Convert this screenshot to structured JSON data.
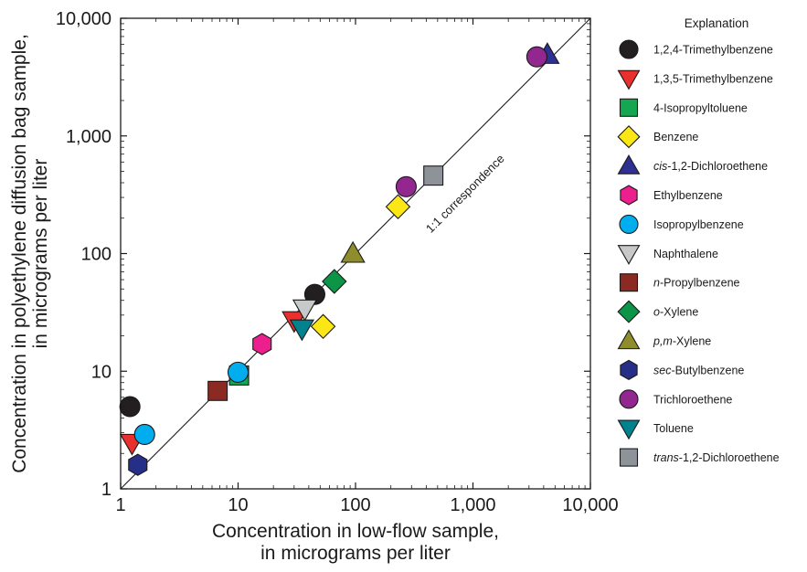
{
  "chart_data": {
    "type": "scatter",
    "title": "",
    "xlabel_lines": [
      "Concentration in low-flow sample,",
      "in micrograms per liter"
    ],
    "ylabel_lines": [
      "Concentration in polyethylene diffusion bag sample,",
      "in micrograms per liter"
    ],
    "scale": "log",
    "xlim": [
      1,
      10000
    ],
    "ylim": [
      1,
      10000
    ],
    "x_ticks": [
      {
        "v": 1,
        "label": "1"
      },
      {
        "v": 10,
        "label": "10"
      },
      {
        "v": 100,
        "label": "100"
      },
      {
        "v": 1000,
        "label": "1,000"
      },
      {
        "v": 10000,
        "label": "10,000"
      }
    ],
    "y_ticks": [
      {
        "v": 1,
        "label": "1"
      },
      {
        "v": 10,
        "label": "10"
      },
      {
        "v": 100,
        "label": "100"
      },
      {
        "v": 1000,
        "label": "1,000"
      },
      {
        "v": 10000,
        "label": "10,000"
      }
    ],
    "grid": false,
    "reference_line": {
      "label": "1:1 correspondence",
      "from": [
        1,
        1
      ],
      "to": [
        10000,
        10000
      ]
    },
    "legend": {
      "title": "Explanation",
      "placement": "right"
    },
    "series": [
      {
        "name": "1,2,4-Trimethylbenzene",
        "italic_prefix": "",
        "rest": "1,2,4-Trimethylbenzene",
        "marker": "circle",
        "color": "#231f20",
        "points": [
          [
            1.2,
            5.0
          ],
          [
            45,
            45
          ]
        ]
      },
      {
        "name": "1,3,5-Trimethylbenzene",
        "italic_prefix": "",
        "rest": "1,3,5-Trimethylbenzene",
        "marker": "triangle-down",
        "color": "#e8312f",
        "points": [
          [
            1.25,
            2.45
          ],
          [
            30,
            27
          ]
        ]
      },
      {
        "name": "4-Isopropyltoluene",
        "italic_prefix": "",
        "rest": "4-Isopropyltoluene",
        "marker": "square",
        "color": "#14a651",
        "points": [
          [
            10.2,
            9.2
          ]
        ]
      },
      {
        "name": "Benzene",
        "italic_prefix": "",
        "rest": "Benzene",
        "marker": "diamond",
        "color": "#fbe716",
        "points": [
          [
            53,
            24
          ],
          [
            230,
            250
          ]
        ]
      },
      {
        "name": "cis-1,2-Dichloroethene",
        "italic_prefix": "cis",
        "rest": "-1,2-Dichloroethene",
        "marker": "triangle-up",
        "color": "#2e3192",
        "points": [
          [
            4300,
            4900
          ]
        ]
      },
      {
        "name": "Ethylbenzene",
        "italic_prefix": "",
        "rest": "Ethylbenzene",
        "marker": "hexagon",
        "color": "#ec1f8e",
        "points": [
          [
            16,
            17
          ]
        ]
      },
      {
        "name": "Isopropylbenzene",
        "italic_prefix": "",
        "rest": "Isopropylbenzene",
        "marker": "circle",
        "color": "#00aeef",
        "points": [
          [
            1.6,
            2.9
          ],
          [
            10,
            9.8
          ]
        ]
      },
      {
        "name": "Naphthalene",
        "italic_prefix": "",
        "rest": "Naphthalene",
        "marker": "triangle-down",
        "color": "#c7c8ca",
        "points": [
          [
            37,
            34
          ]
        ]
      },
      {
        "name": "n-Propylbenzene",
        "italic_prefix": "n",
        "rest": "-Propylbenzene",
        "marker": "square",
        "color": "#8b2a22",
        "points": [
          [
            6.7,
            6.8
          ]
        ]
      },
      {
        "name": "o-Xylene",
        "italic_prefix": "o",
        "rest": "-Xylene",
        "marker": "diamond",
        "color": "#0c9447",
        "points": [
          [
            66,
            58
          ]
        ]
      },
      {
        "name": "p,m-Xylene",
        "italic_prefix": "p,m",
        "rest": "-Xylene",
        "marker": "triangle-up",
        "color": "#8f8c2b",
        "points": [
          [
            95,
            100
          ]
        ]
      },
      {
        "name": "sec-Butylbenzene",
        "italic_prefix": "sec",
        "rest": "-Butylbenzene",
        "marker": "hexagon",
        "color": "#262f87",
        "points": [
          [
            1.4,
            1.6
          ]
        ]
      },
      {
        "name": "Trichloroethene",
        "italic_prefix": "",
        "rest": "Trichloroethene",
        "marker": "circle",
        "color": "#92278f",
        "points": [
          [
            3500,
            4700
          ],
          [
            270,
            370
          ]
        ]
      },
      {
        "name": "Toluene",
        "italic_prefix": "",
        "rest": "Toluene",
        "marker": "triangle-down",
        "color": "#00838f",
        "points": [
          [
            35,
            23
          ]
        ]
      },
      {
        "name": "trans-1,2-Dichloroethene",
        "italic_prefix": "trans",
        "rest": "-1,2-Dichloroethene",
        "marker": "square",
        "color": "#8e9399",
        "points": [
          [
            460,
            460
          ]
        ]
      }
    ]
  }
}
